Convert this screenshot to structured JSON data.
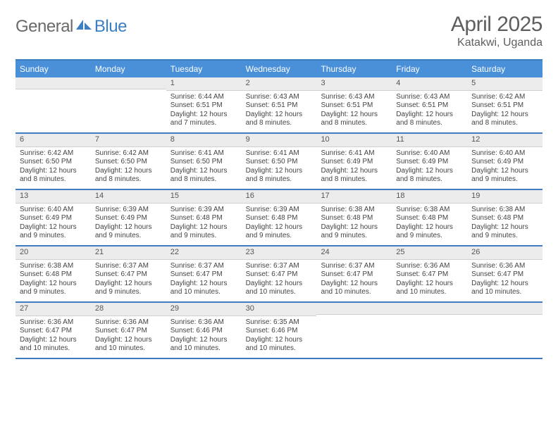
{
  "logo": {
    "part1": "General",
    "part2": "Blue"
  },
  "title": "April 2025",
  "location": "Katakwi, Uganda",
  "colors": {
    "header_bar": "#4a90d9",
    "border": "#3d7cbf",
    "day_header_bg": "#ececec",
    "text": "#444444",
    "logo_gray": "#6a6a6a",
    "logo_blue": "#3b7fc4"
  },
  "weekdays": [
    "Sunday",
    "Monday",
    "Tuesday",
    "Wednesday",
    "Thursday",
    "Friday",
    "Saturday"
  ],
  "weeks": [
    [
      {
        "n": "",
        "sunrise": "",
        "sunset": "",
        "daylight": ""
      },
      {
        "n": "",
        "sunrise": "",
        "sunset": "",
        "daylight": ""
      },
      {
        "n": "1",
        "sunrise": "Sunrise: 6:44 AM",
        "sunset": "Sunset: 6:51 PM",
        "daylight": "Daylight: 12 hours and 7 minutes."
      },
      {
        "n": "2",
        "sunrise": "Sunrise: 6:43 AM",
        "sunset": "Sunset: 6:51 PM",
        "daylight": "Daylight: 12 hours and 8 minutes."
      },
      {
        "n": "3",
        "sunrise": "Sunrise: 6:43 AM",
        "sunset": "Sunset: 6:51 PM",
        "daylight": "Daylight: 12 hours and 8 minutes."
      },
      {
        "n": "4",
        "sunrise": "Sunrise: 6:43 AM",
        "sunset": "Sunset: 6:51 PM",
        "daylight": "Daylight: 12 hours and 8 minutes."
      },
      {
        "n": "5",
        "sunrise": "Sunrise: 6:42 AM",
        "sunset": "Sunset: 6:51 PM",
        "daylight": "Daylight: 12 hours and 8 minutes."
      }
    ],
    [
      {
        "n": "6",
        "sunrise": "Sunrise: 6:42 AM",
        "sunset": "Sunset: 6:50 PM",
        "daylight": "Daylight: 12 hours and 8 minutes."
      },
      {
        "n": "7",
        "sunrise": "Sunrise: 6:42 AM",
        "sunset": "Sunset: 6:50 PM",
        "daylight": "Daylight: 12 hours and 8 minutes."
      },
      {
        "n": "8",
        "sunrise": "Sunrise: 6:41 AM",
        "sunset": "Sunset: 6:50 PM",
        "daylight": "Daylight: 12 hours and 8 minutes."
      },
      {
        "n": "9",
        "sunrise": "Sunrise: 6:41 AM",
        "sunset": "Sunset: 6:50 PM",
        "daylight": "Daylight: 12 hours and 8 minutes."
      },
      {
        "n": "10",
        "sunrise": "Sunrise: 6:41 AM",
        "sunset": "Sunset: 6:49 PM",
        "daylight": "Daylight: 12 hours and 8 minutes."
      },
      {
        "n": "11",
        "sunrise": "Sunrise: 6:40 AM",
        "sunset": "Sunset: 6:49 PM",
        "daylight": "Daylight: 12 hours and 8 minutes."
      },
      {
        "n": "12",
        "sunrise": "Sunrise: 6:40 AM",
        "sunset": "Sunset: 6:49 PM",
        "daylight": "Daylight: 12 hours and 9 minutes."
      }
    ],
    [
      {
        "n": "13",
        "sunrise": "Sunrise: 6:40 AM",
        "sunset": "Sunset: 6:49 PM",
        "daylight": "Daylight: 12 hours and 9 minutes."
      },
      {
        "n": "14",
        "sunrise": "Sunrise: 6:39 AM",
        "sunset": "Sunset: 6:49 PM",
        "daylight": "Daylight: 12 hours and 9 minutes."
      },
      {
        "n": "15",
        "sunrise": "Sunrise: 6:39 AM",
        "sunset": "Sunset: 6:48 PM",
        "daylight": "Daylight: 12 hours and 9 minutes."
      },
      {
        "n": "16",
        "sunrise": "Sunrise: 6:39 AM",
        "sunset": "Sunset: 6:48 PM",
        "daylight": "Daylight: 12 hours and 9 minutes."
      },
      {
        "n": "17",
        "sunrise": "Sunrise: 6:38 AM",
        "sunset": "Sunset: 6:48 PM",
        "daylight": "Daylight: 12 hours and 9 minutes."
      },
      {
        "n": "18",
        "sunrise": "Sunrise: 6:38 AM",
        "sunset": "Sunset: 6:48 PM",
        "daylight": "Daylight: 12 hours and 9 minutes."
      },
      {
        "n": "19",
        "sunrise": "Sunrise: 6:38 AM",
        "sunset": "Sunset: 6:48 PM",
        "daylight": "Daylight: 12 hours and 9 minutes."
      }
    ],
    [
      {
        "n": "20",
        "sunrise": "Sunrise: 6:38 AM",
        "sunset": "Sunset: 6:48 PM",
        "daylight": "Daylight: 12 hours and 9 minutes."
      },
      {
        "n": "21",
        "sunrise": "Sunrise: 6:37 AM",
        "sunset": "Sunset: 6:47 PM",
        "daylight": "Daylight: 12 hours and 9 minutes."
      },
      {
        "n": "22",
        "sunrise": "Sunrise: 6:37 AM",
        "sunset": "Sunset: 6:47 PM",
        "daylight": "Daylight: 12 hours and 10 minutes."
      },
      {
        "n": "23",
        "sunrise": "Sunrise: 6:37 AM",
        "sunset": "Sunset: 6:47 PM",
        "daylight": "Daylight: 12 hours and 10 minutes."
      },
      {
        "n": "24",
        "sunrise": "Sunrise: 6:37 AM",
        "sunset": "Sunset: 6:47 PM",
        "daylight": "Daylight: 12 hours and 10 minutes."
      },
      {
        "n": "25",
        "sunrise": "Sunrise: 6:36 AM",
        "sunset": "Sunset: 6:47 PM",
        "daylight": "Daylight: 12 hours and 10 minutes."
      },
      {
        "n": "26",
        "sunrise": "Sunrise: 6:36 AM",
        "sunset": "Sunset: 6:47 PM",
        "daylight": "Daylight: 12 hours and 10 minutes."
      }
    ],
    [
      {
        "n": "27",
        "sunrise": "Sunrise: 6:36 AM",
        "sunset": "Sunset: 6:47 PM",
        "daylight": "Daylight: 12 hours and 10 minutes."
      },
      {
        "n": "28",
        "sunrise": "Sunrise: 6:36 AM",
        "sunset": "Sunset: 6:47 PM",
        "daylight": "Daylight: 12 hours and 10 minutes."
      },
      {
        "n": "29",
        "sunrise": "Sunrise: 6:36 AM",
        "sunset": "Sunset: 6:46 PM",
        "daylight": "Daylight: 12 hours and 10 minutes."
      },
      {
        "n": "30",
        "sunrise": "Sunrise: 6:35 AM",
        "sunset": "Sunset: 6:46 PM",
        "daylight": "Daylight: 12 hours and 10 minutes."
      },
      {
        "n": "",
        "sunrise": "",
        "sunset": "",
        "daylight": ""
      },
      {
        "n": "",
        "sunrise": "",
        "sunset": "",
        "daylight": ""
      },
      {
        "n": "",
        "sunrise": "",
        "sunset": "",
        "daylight": ""
      }
    ]
  ]
}
